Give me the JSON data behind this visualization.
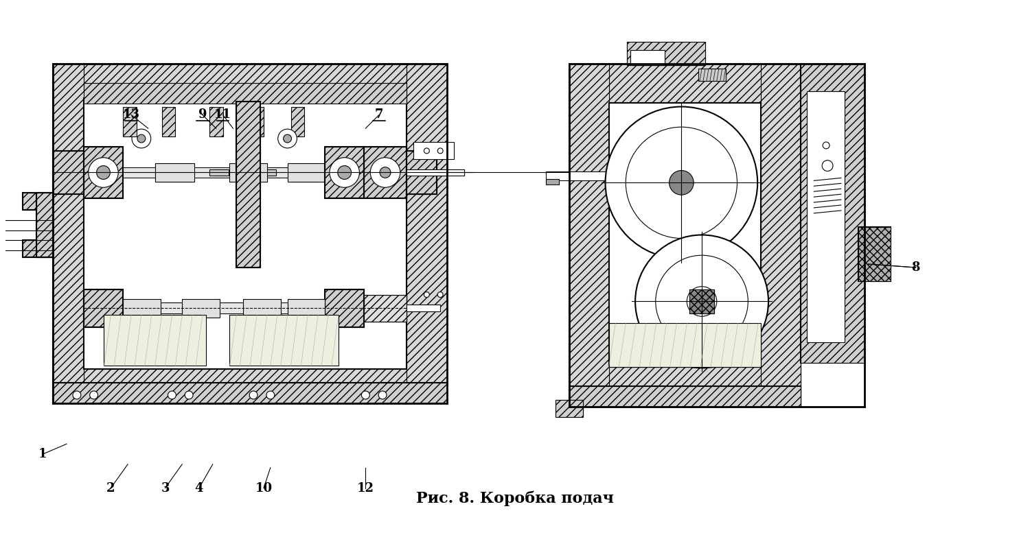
{
  "title": "Рис. 8. Коробка подач",
  "title_fontsize": 16,
  "background_color": "#ffffff",
  "labels_data": [
    [
      "1",
      55,
      665,
      90,
      650
    ],
    [
      "2",
      155,
      715,
      180,
      680
    ],
    [
      "3",
      235,
      715,
      260,
      680
    ],
    [
      "4",
      285,
      715,
      305,
      680
    ],
    [
      "10",
      380,
      715,
      390,
      685
    ],
    [
      "12",
      530,
      715,
      530,
      685
    ],
    [
      "7",
      550,
      165,
      530,
      185
    ],
    [
      "9",
      290,
      165,
      310,
      185
    ],
    [
      "11",
      320,
      165,
      335,
      185
    ],
    [
      "13",
      185,
      165,
      210,
      185
    ],
    [
      "8",
      1340,
      390,
      1270,
      385
    ]
  ],
  "fig_width": 15.0,
  "fig_height": 7.8
}
